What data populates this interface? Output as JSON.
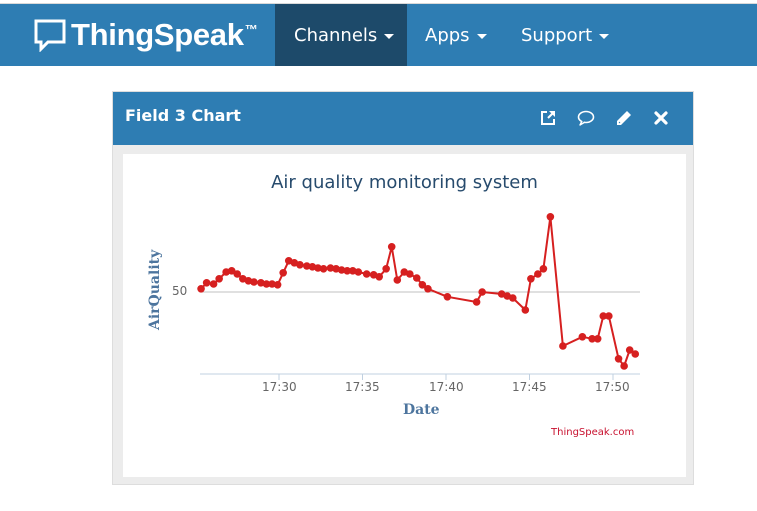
{
  "navbar": {
    "brand": "ThingSpeak",
    "brand_tm": "™",
    "items": [
      {
        "label": "Channels",
        "active": true
      },
      {
        "label": "Apps",
        "active": false
      },
      {
        "label": "Support",
        "active": false
      }
    ]
  },
  "card": {
    "title": "Field 3 Chart",
    "icons": [
      "external-link-icon",
      "comment-icon",
      "pencil-icon",
      "close-icon"
    ]
  },
  "colors": {
    "navbar": "#2e7db3",
    "nav_active": "#1d4a6a",
    "series": "#d62020",
    "credit": "#c8102e",
    "axis_title": "#4d759e",
    "title": "#274b6d"
  },
  "chart_data": {
    "type": "line",
    "title": "Air quality monitoring system",
    "xlabel": "Date",
    "ylabel": "AirQuality",
    "credit": "ThingSpeak.com",
    "x_ticks": [
      "17:30",
      "17:35",
      "17:40",
      "17:45",
      "17:50"
    ],
    "y_ticks": [
      50
    ],
    "y_plotline": 50,
    "grid": false,
    "legend": "none",
    "series": [
      {
        "name": "Field 3",
        "x": [
          "17:25:20",
          "17:25:40",
          "17:26:05",
          "17:26:25",
          "17:26:50",
          "17:27:10",
          "17:27:30",
          "17:27:50",
          "17:28:10",
          "17:28:30",
          "17:28:55",
          "17:29:15",
          "17:29:35",
          "17:29:55",
          "17:30:15",
          "17:30:35",
          "17:30:55",
          "17:31:15",
          "17:31:40",
          "17:32:00",
          "17:32:20",
          "17:32:40",
          "17:33:05",
          "17:33:25",
          "17:33:45",
          "17:34:05",
          "17:34:25",
          "17:34:45",
          "17:35:15",
          "17:35:40",
          "17:36:00",
          "17:36:25",
          "17:36:45",
          "17:37:05",
          "17:37:30",
          "17:37:50",
          "17:38:15",
          "17:38:35",
          "17:38:55",
          "17:40:05",
          "17:41:50",
          "17:42:10",
          "17:43:20",
          "17:43:40",
          "17:44:00",
          "17:44:45",
          "17:45:05",
          "17:45:30",
          "17:45:50",
          "17:46:15",
          "17:47:00",
          "17:48:10",
          "17:48:45",
          "17:49:05",
          "17:49:25",
          "17:49:45",
          "17:50:20",
          "17:50:40",
          "17:51:00",
          "17:51:20"
        ],
        "values": [
          50.8,
          52.3,
          52.0,
          53.3,
          55.0,
          55.3,
          54.5,
          53.3,
          52.8,
          52.5,
          52.3,
          52.0,
          52.0,
          51.8,
          54.8,
          57.8,
          57.3,
          56.8,
          56.5,
          56.3,
          56.0,
          55.8,
          56.0,
          55.8,
          55.5,
          55.3,
          55.3,
          55.0,
          54.5,
          54.3,
          53.8,
          55.8,
          61.3,
          53.0,
          55.0,
          54.5,
          53.5,
          51.8,
          50.8,
          48.8,
          47.5,
          50.0,
          49.5,
          49.0,
          48.5,
          45.5,
          53.3,
          54.5,
          55.8,
          68.8,
          36.5,
          38.8,
          38.3,
          38.3,
          44.0,
          44.0,
          33.3,
          31.5,
          35.5,
          34.5
        ]
      }
    ]
  }
}
